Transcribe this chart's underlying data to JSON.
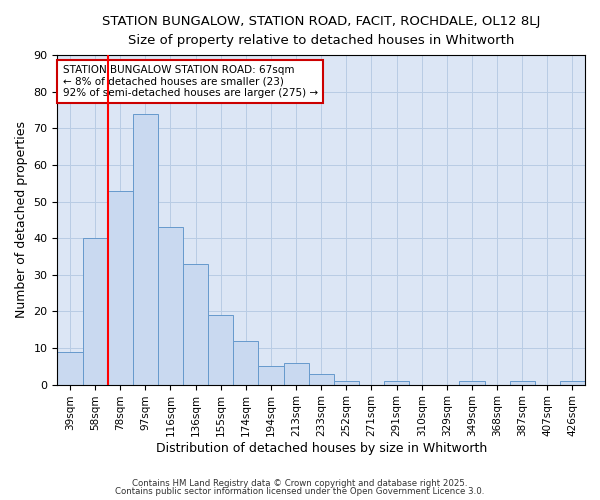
{
  "title1": "STATION BUNGALOW, STATION ROAD, FACIT, ROCHDALE, OL12 8LJ",
  "title2": "Size of property relative to detached houses in Whitworth",
  "xlabel": "Distribution of detached houses by size in Whitworth",
  "ylabel": "Number of detached properties",
  "categories": [
    "39sqm",
    "58sqm",
    "78sqm",
    "97sqm",
    "116sqm",
    "136sqm",
    "155sqm",
    "174sqm",
    "194sqm",
    "213sqm",
    "233sqm",
    "252sqm",
    "271sqm",
    "291sqm",
    "310sqm",
    "329sqm",
    "349sqm",
    "368sqm",
    "387sqm",
    "407sqm",
    "426sqm"
  ],
  "values": [
    9,
    40,
    53,
    74,
    43,
    33,
    19,
    12,
    5,
    6,
    3,
    1,
    0,
    1,
    0,
    0,
    1,
    0,
    1,
    0,
    1
  ],
  "bar_color": "#c9d9f0",
  "bar_edge_color": "#6699cc",
  "red_line_x": 1.5,
  "annotation_text": "STATION BUNGALOW STATION ROAD: 67sqm\n← 8% of detached houses are smaller (23)\n92% of semi-detached houses are larger (275) →",
  "annotation_box_color": "#ffffff",
  "annotation_box_edge": "#cc0000",
  "ylim": [
    0,
    90
  ],
  "yticks": [
    0,
    10,
    20,
    30,
    40,
    50,
    60,
    70,
    80,
    90
  ],
  "grid_color": "#b8cce4",
  "bg_color": "#dce6f5",
  "fig_bg": "#ffffff",
  "footer1": "Contains HM Land Registry data © Crown copyright and database right 2025.",
  "footer2": "Contains public sector information licensed under the Open Government Licence 3.0."
}
